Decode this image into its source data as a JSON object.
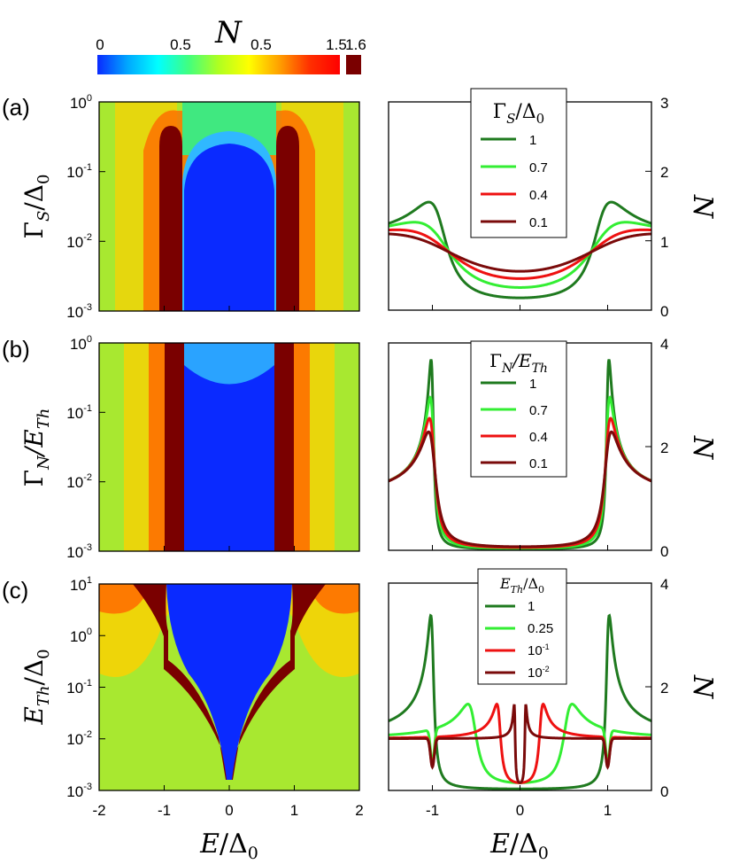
{
  "colorbar": {
    "title": "N",
    "ticks": [
      "0",
      "0.5",
      "0.5",
      "1.5",
      "1.6"
    ],
    "colors": [
      "#0a2aff",
      "#00a8ff",
      "#00ffff",
      "#40ff80",
      "#b0ff20",
      "#ffff00",
      "#ffa000",
      "#ff3000",
      "#ff0000"
    ],
    "overflow_color": "#7a0000"
  },
  "chart_data": [
    {
      "panel": "(a)",
      "type": "heatmap",
      "xlabel": "E/Δ0",
      "ylabel": "ΓS/Δ0",
      "ylabel_main": "Γ",
      "ylabel_sub": "S",
      "ylabel_den": "/Δ",
      "ylabel_den_sub": "0",
      "ylim": [
        0.001,
        1
      ],
      "y_ticks": [
        {
          "base": "10",
          "exp": "0"
        },
        {
          "base": "10",
          "exp": "-1"
        },
        {
          "base": "10",
          "exp": "-2"
        },
        {
          "base": "10",
          "exp": "-3"
        }
      ],
      "xlim": [
        -2,
        2
      ]
    },
    {
      "panel": "(a)",
      "type": "line",
      "legend_title": "ΓS/Δ0",
      "legend_main": "Γ",
      "legend_sub": "S",
      "legend_den": "/Δ",
      "legend_den_sub": "0",
      "ylabel": "N",
      "ylim": [
        0,
        3
      ],
      "y_ticks": [
        "3",
        "2",
        "1",
        "0"
      ],
      "xlim": [
        -1.5,
        1.5
      ],
      "series": [
        {
          "name": "1",
          "color": "#1f7a1f",
          "value": 1
        },
        {
          "name": "0.7",
          "color": "#33ee33",
          "value": 0.7
        },
        {
          "name": "0.4",
          "color": "#ee1111",
          "value": 0.4
        },
        {
          "name": "0.1",
          "color": "#7a0a0a",
          "value": 0.1
        }
      ]
    },
    {
      "panel": "(b)",
      "type": "heatmap",
      "xlabel": "E/Δ0",
      "ylabel": "ΓN/ETh",
      "ylabel_main": "Γ",
      "ylabel_sub": "N",
      "ylabel_den": "/E",
      "ylabel_den_sub": "Th",
      "ylim": [
        0.001,
        1
      ],
      "y_ticks": [
        {
          "base": "10",
          "exp": "0"
        },
        {
          "base": "10",
          "exp": "-1"
        },
        {
          "base": "10",
          "exp": "-2"
        },
        {
          "base": "10",
          "exp": "-3"
        }
      ],
      "xlim": [
        -2,
        2
      ]
    },
    {
      "panel": "(b)",
      "type": "line",
      "legend_title": "ΓN/ETh",
      "legend_main": "Γ",
      "legend_sub": "N",
      "legend_den": "/E",
      "legend_den_sub": "Th",
      "ylabel": "N",
      "ylim": [
        0,
        4
      ],
      "y_ticks": [
        "4",
        "2",
        "0"
      ],
      "xlim": [
        -1.5,
        1.5
      ],
      "series": [
        {
          "name": "1",
          "color": "#1f7a1f",
          "value": 1
        },
        {
          "name": "0.7",
          "color": "#33ee33",
          "value": 0.7
        },
        {
          "name": "0.4",
          "color": "#ee1111",
          "value": 0.4
        },
        {
          "name": "0.1",
          "color": "#7a0a0a",
          "value": 0.1
        }
      ]
    },
    {
      "panel": "(c)",
      "type": "heatmap",
      "xlabel": "E/Δ0",
      "ylabel": "ETh/Δ0",
      "ylabel_main": "E",
      "ylabel_sub": "Th",
      "ylabel_den": "/Δ",
      "ylabel_den_sub": "0",
      "ylim": [
        0.001,
        10
      ],
      "y_ticks": [
        {
          "base": "10",
          "exp": "1"
        },
        {
          "base": "10",
          "exp": "0"
        },
        {
          "base": "10",
          "exp": "-1"
        },
        {
          "base": "10",
          "exp": "-2"
        },
        {
          "base": "10",
          "exp": "-3"
        }
      ],
      "x_ticks": [
        "-2",
        "-1",
        "0",
        "1",
        "2"
      ],
      "xlim": [
        -2,
        2
      ]
    },
    {
      "panel": "(c)",
      "type": "line",
      "legend_title": "ETh/Δ0",
      "legend_main": "E",
      "legend_sub": "Th",
      "legend_den": "/Δ",
      "legend_den_sub": "0",
      "ylabel": "N",
      "ylim": [
        0,
        4
      ],
      "y_ticks": [
        "4",
        "2",
        "0"
      ],
      "x_ticks": [
        "-1",
        "0",
        "1"
      ],
      "xlim": [
        -1.5,
        1.5
      ],
      "series": [
        {
          "name": "1",
          "color": "#1f7a1f",
          "value": 1
        },
        {
          "name": "0.25",
          "color": "#33ee33",
          "value": 0.25
        },
        {
          "name": "10-1",
          "label_base": "10",
          "label_exp": "-1",
          "color": "#ee1111",
          "value": 0.1
        },
        {
          "name": "10-2",
          "label_base": "10",
          "label_exp": "-2",
          "color": "#7a0a0a",
          "value": 0.01
        }
      ]
    }
  ],
  "xlabel_main": "E",
  "xlabel_den": "/Δ",
  "xlabel_den_sub": "0"
}
